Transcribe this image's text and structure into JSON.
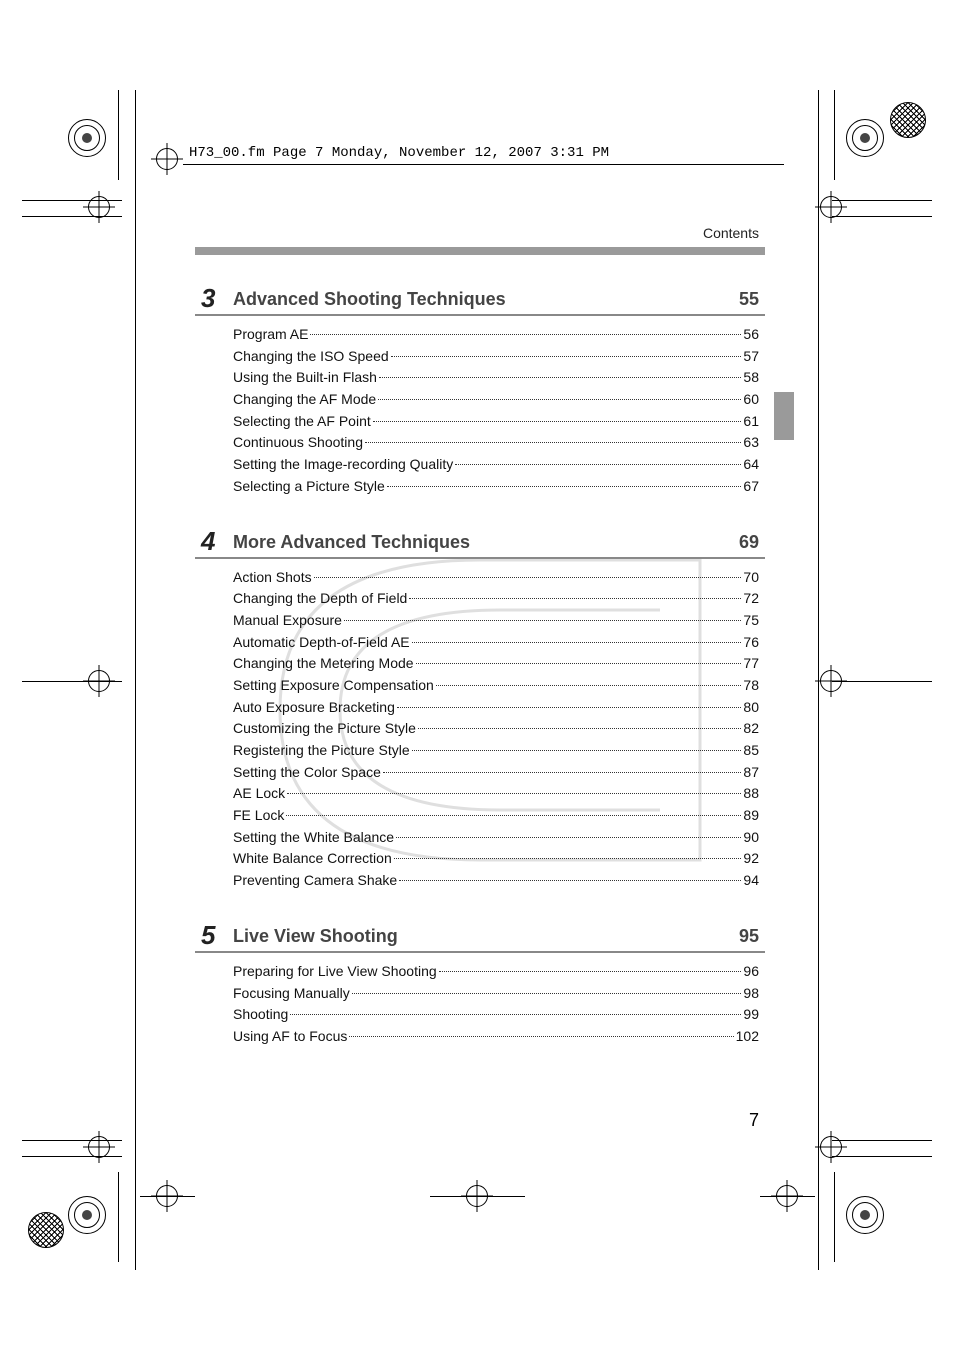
{
  "header_text": "H73_00.fm  Page 7  Monday, November 12, 2007  3:31 PM",
  "header_label": "Contents",
  "page_number": "7",
  "sections": [
    {
      "num": "3",
      "title": "Advanced Shooting Techniques",
      "page": "55",
      "items": [
        {
          "label": "Program AE",
          "page": "56"
        },
        {
          "label": "Changing the ISO Speed",
          "page": "57"
        },
        {
          "label": "Using the Built-in Flash",
          "page": "58"
        },
        {
          "label": "Changing the AF Mode",
          "page": "60"
        },
        {
          "label": "Selecting the AF Point",
          "page": "61"
        },
        {
          "label": "Continuous Shooting",
          "page": "63"
        },
        {
          "label": "Setting the Image-recording Quality",
          "page": "64"
        },
        {
          "label": "Selecting a Picture Style",
          "page": "67"
        }
      ]
    },
    {
      "num": "4",
      "title": "More Advanced Techniques",
      "page": "69",
      "items": [
        {
          "label": "Action Shots",
          "page": "70"
        },
        {
          "label": "Changing the Depth of Field",
          "page": "72"
        },
        {
          "label": "Manual Exposure",
          "page": "75"
        },
        {
          "label": "Automatic Depth-of-Field AE",
          "page": "76"
        },
        {
          "label": "Changing the Metering Mode",
          "page": "77"
        },
        {
          "label": "Setting Exposure Compensation",
          "page": "78"
        },
        {
          "label": "Auto Exposure Bracketing",
          "page": "80"
        },
        {
          "label": "Customizing the Picture Style",
          "page": "82"
        },
        {
          "label": "Registering the Picture Style",
          "page": "85"
        },
        {
          "label": "Setting the Color Space",
          "page": "87"
        },
        {
          "label": "AE Lock",
          "page": "88"
        },
        {
          "label": "FE Lock",
          "page": "89"
        },
        {
          "label": "Setting the White Balance",
          "page": "90"
        },
        {
          "label": "White Balance Correction",
          "page": "92"
        },
        {
          "label": "Preventing Camera Shake",
          "page": "94"
        }
      ]
    },
    {
      "num": "5",
      "title": "Live View Shooting",
      "page": "95",
      "items": [
        {
          "label": "Preparing for Live View Shooting",
          "page": "96"
        },
        {
          "label": "Focusing Manually",
          "page": "98"
        },
        {
          "label": "Shooting",
          "page": "99"
        },
        {
          "label": "Using AF to Focus",
          "page": "102"
        }
      ]
    }
  ],
  "colors": {
    "grey_bar": "#9a9a9a",
    "title_text": "#444444",
    "body_text": "#111111"
  }
}
